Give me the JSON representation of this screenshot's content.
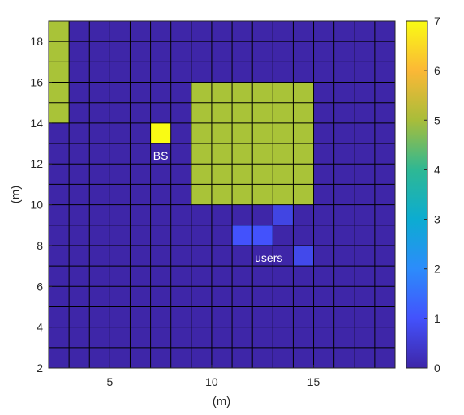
{
  "chart_data": {
    "type": "heatmap",
    "title": "",
    "xlabel": "(m)",
    "ylabel": "(m)",
    "xlim": [
      2,
      19
    ],
    "ylim": [
      2,
      19
    ],
    "cell_size": 1,
    "background_value": 0,
    "grid": true,
    "colormap": "parula",
    "colorbar": {
      "min": 0,
      "max": 7,
      "ticks": [
        "0",
        "1",
        "2",
        "3",
        "4",
        "5",
        "6",
        "7"
      ],
      "placement": "right"
    },
    "x_ticks": [
      "5",
      "10",
      "15"
    ],
    "y_ticks": [
      "2",
      "4",
      "6",
      "8",
      "10",
      "12",
      "14",
      "16",
      "18"
    ],
    "regions": [
      {
        "x": [
          2,
          3
        ],
        "y": [
          14,
          19
        ],
        "value": 5
      },
      {
        "x": [
          9,
          15
        ],
        "y": [
          10,
          16
        ],
        "value": 5
      }
    ],
    "cells": [
      {
        "x": 7,
        "y": 13,
        "value": 7
      },
      {
        "x": 11,
        "y": 8,
        "value": 1
      },
      {
        "x": 12,
        "y": 8,
        "value": 1
      },
      {
        "x": 13,
        "y": 9,
        "value": 0.7
      },
      {
        "x": 14,
        "y": 7,
        "value": 0.8
      }
    ],
    "annotations": [
      {
        "text": "BS",
        "x": 7.5,
        "y": 12.4
      },
      {
        "text": "users",
        "x": 12.8,
        "y": 7.4
      }
    ]
  }
}
